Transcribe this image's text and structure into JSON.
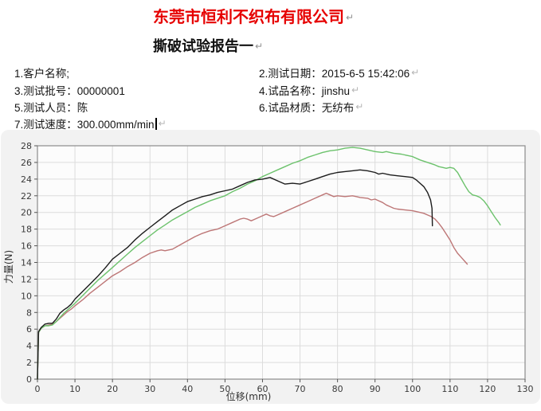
{
  "header": {
    "company_title": "东莞市恒利不织布有限公司",
    "report_title": "撕破试验报告一",
    "paragraph_mark": "↵",
    "company_title_color": "#e60000"
  },
  "info": {
    "customer": "1.客户名称;",
    "date": "2.测试日期：2015-6-5 15:42:06",
    "batch": "3.测试批号：00000001",
    "sample": "4.试品名称：jinshu",
    "tester": "5.测试人员：陈",
    "material": "6.试品材质：无纺布",
    "speed_label": "7.测试速度：",
    "speed_value": "300.000mm/min"
  },
  "chart_data": {
    "type": "line",
    "title": "",
    "xlabel": "位移(mm)",
    "ylabel": "力量(N)",
    "xlim": [
      0,
      130
    ],
    "ylim": [
      0,
      28
    ],
    "xticks": [
      0,
      10,
      20,
      30,
      40,
      50,
      60,
      70,
      80,
      90,
      100,
      110,
      120,
      130
    ],
    "yticks": [
      0,
      2,
      4,
      6,
      8,
      10,
      12,
      14,
      16,
      18,
      20,
      22,
      24,
      26,
      28
    ],
    "grid": true,
    "legend_position": "none",
    "plot_bg": "#fcfcfc",
    "grid_color": "#dcdcdc",
    "border_color": "#8c8c8c",
    "series": [
      {
        "name": "red-curve",
        "color": "#bd7676",
        "points": [
          [
            0,
            0
          ],
          [
            0.3,
            5.6
          ],
          [
            1,
            6.1
          ],
          [
            2,
            6.4
          ],
          [
            3,
            6.5
          ],
          [
            4,
            6.6
          ],
          [
            5,
            6.9
          ],
          [
            6,
            7.3
          ],
          [
            7,
            7.7
          ],
          [
            8,
            8.1
          ],
          [
            9,
            8.4
          ],
          [
            10,
            8.8
          ],
          [
            12,
            9.5
          ],
          [
            14,
            10.3
          ],
          [
            16,
            11
          ],
          [
            18,
            11.7
          ],
          [
            20,
            12.4
          ],
          [
            22,
            12.9
          ],
          [
            24,
            13.5
          ],
          [
            26,
            14
          ],
          [
            28,
            14.6
          ],
          [
            30,
            15.1
          ],
          [
            32,
            15.4
          ],
          [
            33,
            15.5
          ],
          [
            34,
            15.4
          ],
          [
            35,
            15.5
          ],
          [
            36,
            15.6
          ],
          [
            38,
            16.1
          ],
          [
            40,
            16.6
          ],
          [
            42,
            17.1
          ],
          [
            44,
            17.5
          ],
          [
            46,
            17.8
          ],
          [
            48,
            18
          ],
          [
            50,
            18.4
          ],
          [
            52,
            18.8
          ],
          [
            54,
            19.2
          ],
          [
            55,
            19.3
          ],
          [
            56,
            19.2
          ],
          [
            57,
            19
          ],
          [
            58,
            19.2
          ],
          [
            60,
            19.6
          ],
          [
            61,
            19.8
          ],
          [
            62,
            19.6
          ],
          [
            63,
            19.5
          ],
          [
            64,
            19.7
          ],
          [
            66,
            20.1
          ],
          [
            68,
            20.5
          ],
          [
            70,
            20.9
          ],
          [
            72,
            21.3
          ],
          [
            74,
            21.7
          ],
          [
            76,
            22.1
          ],
          [
            77,
            22.3
          ],
          [
            78,
            22.1
          ],
          [
            79,
            21.9
          ],
          [
            80,
            22
          ],
          [
            82,
            21.9
          ],
          [
            84,
            22
          ],
          [
            85,
            21.9
          ],
          [
            86,
            21.8
          ],
          [
            88,
            21.7
          ],
          [
            89,
            21.5
          ],
          [
            90,
            21.6
          ],
          [
            91,
            21.4
          ],
          [
            92,
            21.2
          ],
          [
            93,
            20.9
          ],
          [
            94,
            20.7
          ],
          [
            95,
            20.5
          ],
          [
            96,
            20.4
          ],
          [
            98,
            20.3
          ],
          [
            100,
            20.2
          ],
          [
            102,
            20
          ],
          [
            103,
            19.9
          ],
          [
            104,
            19.7
          ],
          [
            105,
            19.5
          ],
          [
            106,
            19.2
          ],
          [
            107,
            18.7
          ],
          [
            108,
            18.1
          ],
          [
            109,
            17.4
          ],
          [
            110,
            16.7
          ],
          [
            111,
            15.8
          ],
          [
            112,
            15.1
          ],
          [
            113,
            14.6
          ],
          [
            114,
            14.1
          ],
          [
            114.6,
            13.8
          ]
        ]
      },
      {
        "name": "green-curve",
        "color": "#6cc26c",
        "points": [
          [
            0,
            0
          ],
          [
            0.3,
            5.6
          ],
          [
            1,
            6.1
          ],
          [
            2,
            6.4
          ],
          [
            3,
            6.4
          ],
          [
            4,
            6.5
          ],
          [
            5,
            6.9
          ],
          [
            6,
            7.4
          ],
          [
            7,
            7.9
          ],
          [
            8,
            8.3
          ],
          [
            9,
            8.7
          ],
          [
            10,
            9.1
          ],
          [
            12,
            10
          ],
          [
            14,
            10.9
          ],
          [
            16,
            11.8
          ],
          [
            18,
            12.6
          ],
          [
            20,
            13.4
          ],
          [
            22,
            14.2
          ],
          [
            24,
            15
          ],
          [
            26,
            15.8
          ],
          [
            28,
            16.5
          ],
          [
            30,
            17.2
          ],
          [
            32,
            17.9
          ],
          [
            34,
            18.5
          ],
          [
            36,
            19.1
          ],
          [
            38,
            19.6
          ],
          [
            40,
            20.1
          ],
          [
            42,
            20.6
          ],
          [
            44,
            21
          ],
          [
            46,
            21.4
          ],
          [
            48,
            21.7
          ],
          [
            50,
            22
          ],
          [
            52,
            22.5
          ],
          [
            54,
            22.9
          ],
          [
            56,
            23.4
          ],
          [
            58,
            23.8
          ],
          [
            60,
            24.3
          ],
          [
            62,
            24.7
          ],
          [
            64,
            25.1
          ],
          [
            66,
            25.5
          ],
          [
            68,
            25.9
          ],
          [
            70,
            26.2
          ],
          [
            72,
            26.6
          ],
          [
            74,
            26.9
          ],
          [
            76,
            27.2
          ],
          [
            78,
            27.4
          ],
          [
            80,
            27.5
          ],
          [
            82,
            27.7
          ],
          [
            84,
            27.8
          ],
          [
            86,
            27.7
          ],
          [
            88,
            27.5
          ],
          [
            90,
            27.3
          ],
          [
            92,
            27.2
          ],
          [
            93,
            27.3
          ],
          [
            95,
            27.1
          ],
          [
            97,
            27
          ],
          [
            99,
            26.8
          ],
          [
            100,
            26.7
          ],
          [
            102,
            26.3
          ],
          [
            104,
            26
          ],
          [
            106,
            25.7
          ],
          [
            107,
            25.5
          ],
          [
            108,
            25.4
          ],
          [
            109,
            25.3
          ],
          [
            110,
            25.4
          ],
          [
            111,
            25.3
          ],
          [
            112,
            24.8
          ],
          [
            113,
            24
          ],
          [
            114,
            23.2
          ],
          [
            115,
            22.5
          ],
          [
            116,
            22.1
          ],
          [
            117,
            22
          ],
          [
            118,
            21.8
          ],
          [
            119,
            21.4
          ],
          [
            120,
            20.8
          ],
          [
            121,
            20.1
          ],
          [
            122,
            19.4
          ],
          [
            123,
            18.8
          ],
          [
            123.4,
            18.5
          ]
        ]
      },
      {
        "name": "black-curve",
        "color": "#1c1c1c",
        "points": [
          [
            0,
            0
          ],
          [
            0.3,
            5.7
          ],
          [
            1,
            6.2
          ],
          [
            2,
            6.6
          ],
          [
            3,
            6.7
          ],
          [
            4,
            6.7
          ],
          [
            5,
            7.2
          ],
          [
            6,
            7.9
          ],
          [
            7,
            8.3
          ],
          [
            8,
            8.6
          ],
          [
            9,
            9
          ],
          [
            10,
            9.6
          ],
          [
            12,
            10.5
          ],
          [
            14,
            11.4
          ],
          [
            16,
            12.3
          ],
          [
            18,
            13.3
          ],
          [
            20,
            14.4
          ],
          [
            22,
            15.1
          ],
          [
            24,
            15.8
          ],
          [
            26,
            16.7
          ],
          [
            28,
            17.5
          ],
          [
            30,
            18.2
          ],
          [
            32,
            18.9
          ],
          [
            34,
            19.6
          ],
          [
            36,
            20.3
          ],
          [
            38,
            20.8
          ],
          [
            40,
            21.3
          ],
          [
            42,
            21.6
          ],
          [
            44,
            21.9
          ],
          [
            46,
            22.1
          ],
          [
            48,
            22.4
          ],
          [
            50,
            22.6
          ],
          [
            52,
            22.8
          ],
          [
            54,
            23.2
          ],
          [
            56,
            23.6
          ],
          [
            58,
            23.9
          ],
          [
            60,
            24
          ],
          [
            62,
            24.2
          ],
          [
            64,
            23.8
          ],
          [
            66,
            23.4
          ],
          [
            68,
            23.5
          ],
          [
            70,
            23.4
          ],
          [
            72,
            23.7
          ],
          [
            74,
            24
          ],
          [
            76,
            24.3
          ],
          [
            78,
            24.6
          ],
          [
            80,
            24.8
          ],
          [
            82,
            24.9
          ],
          [
            84,
            25
          ],
          [
            86,
            25.1
          ],
          [
            88,
            25
          ],
          [
            90,
            24.8
          ],
          [
            91,
            24.6
          ],
          [
            92,
            24.7
          ],
          [
            94,
            24.5
          ],
          [
            96,
            24.4
          ],
          [
            98,
            24.3
          ],
          [
            100,
            24.2
          ],
          [
            101,
            23.9
          ],
          [
            102,
            23.5
          ],
          [
            103,
            23.1
          ],
          [
            104,
            22.4
          ],
          [
            104.8,
            21.5
          ],
          [
            105.2,
            20.5
          ],
          [
            105.3,
            18.4
          ]
        ]
      }
    ]
  }
}
